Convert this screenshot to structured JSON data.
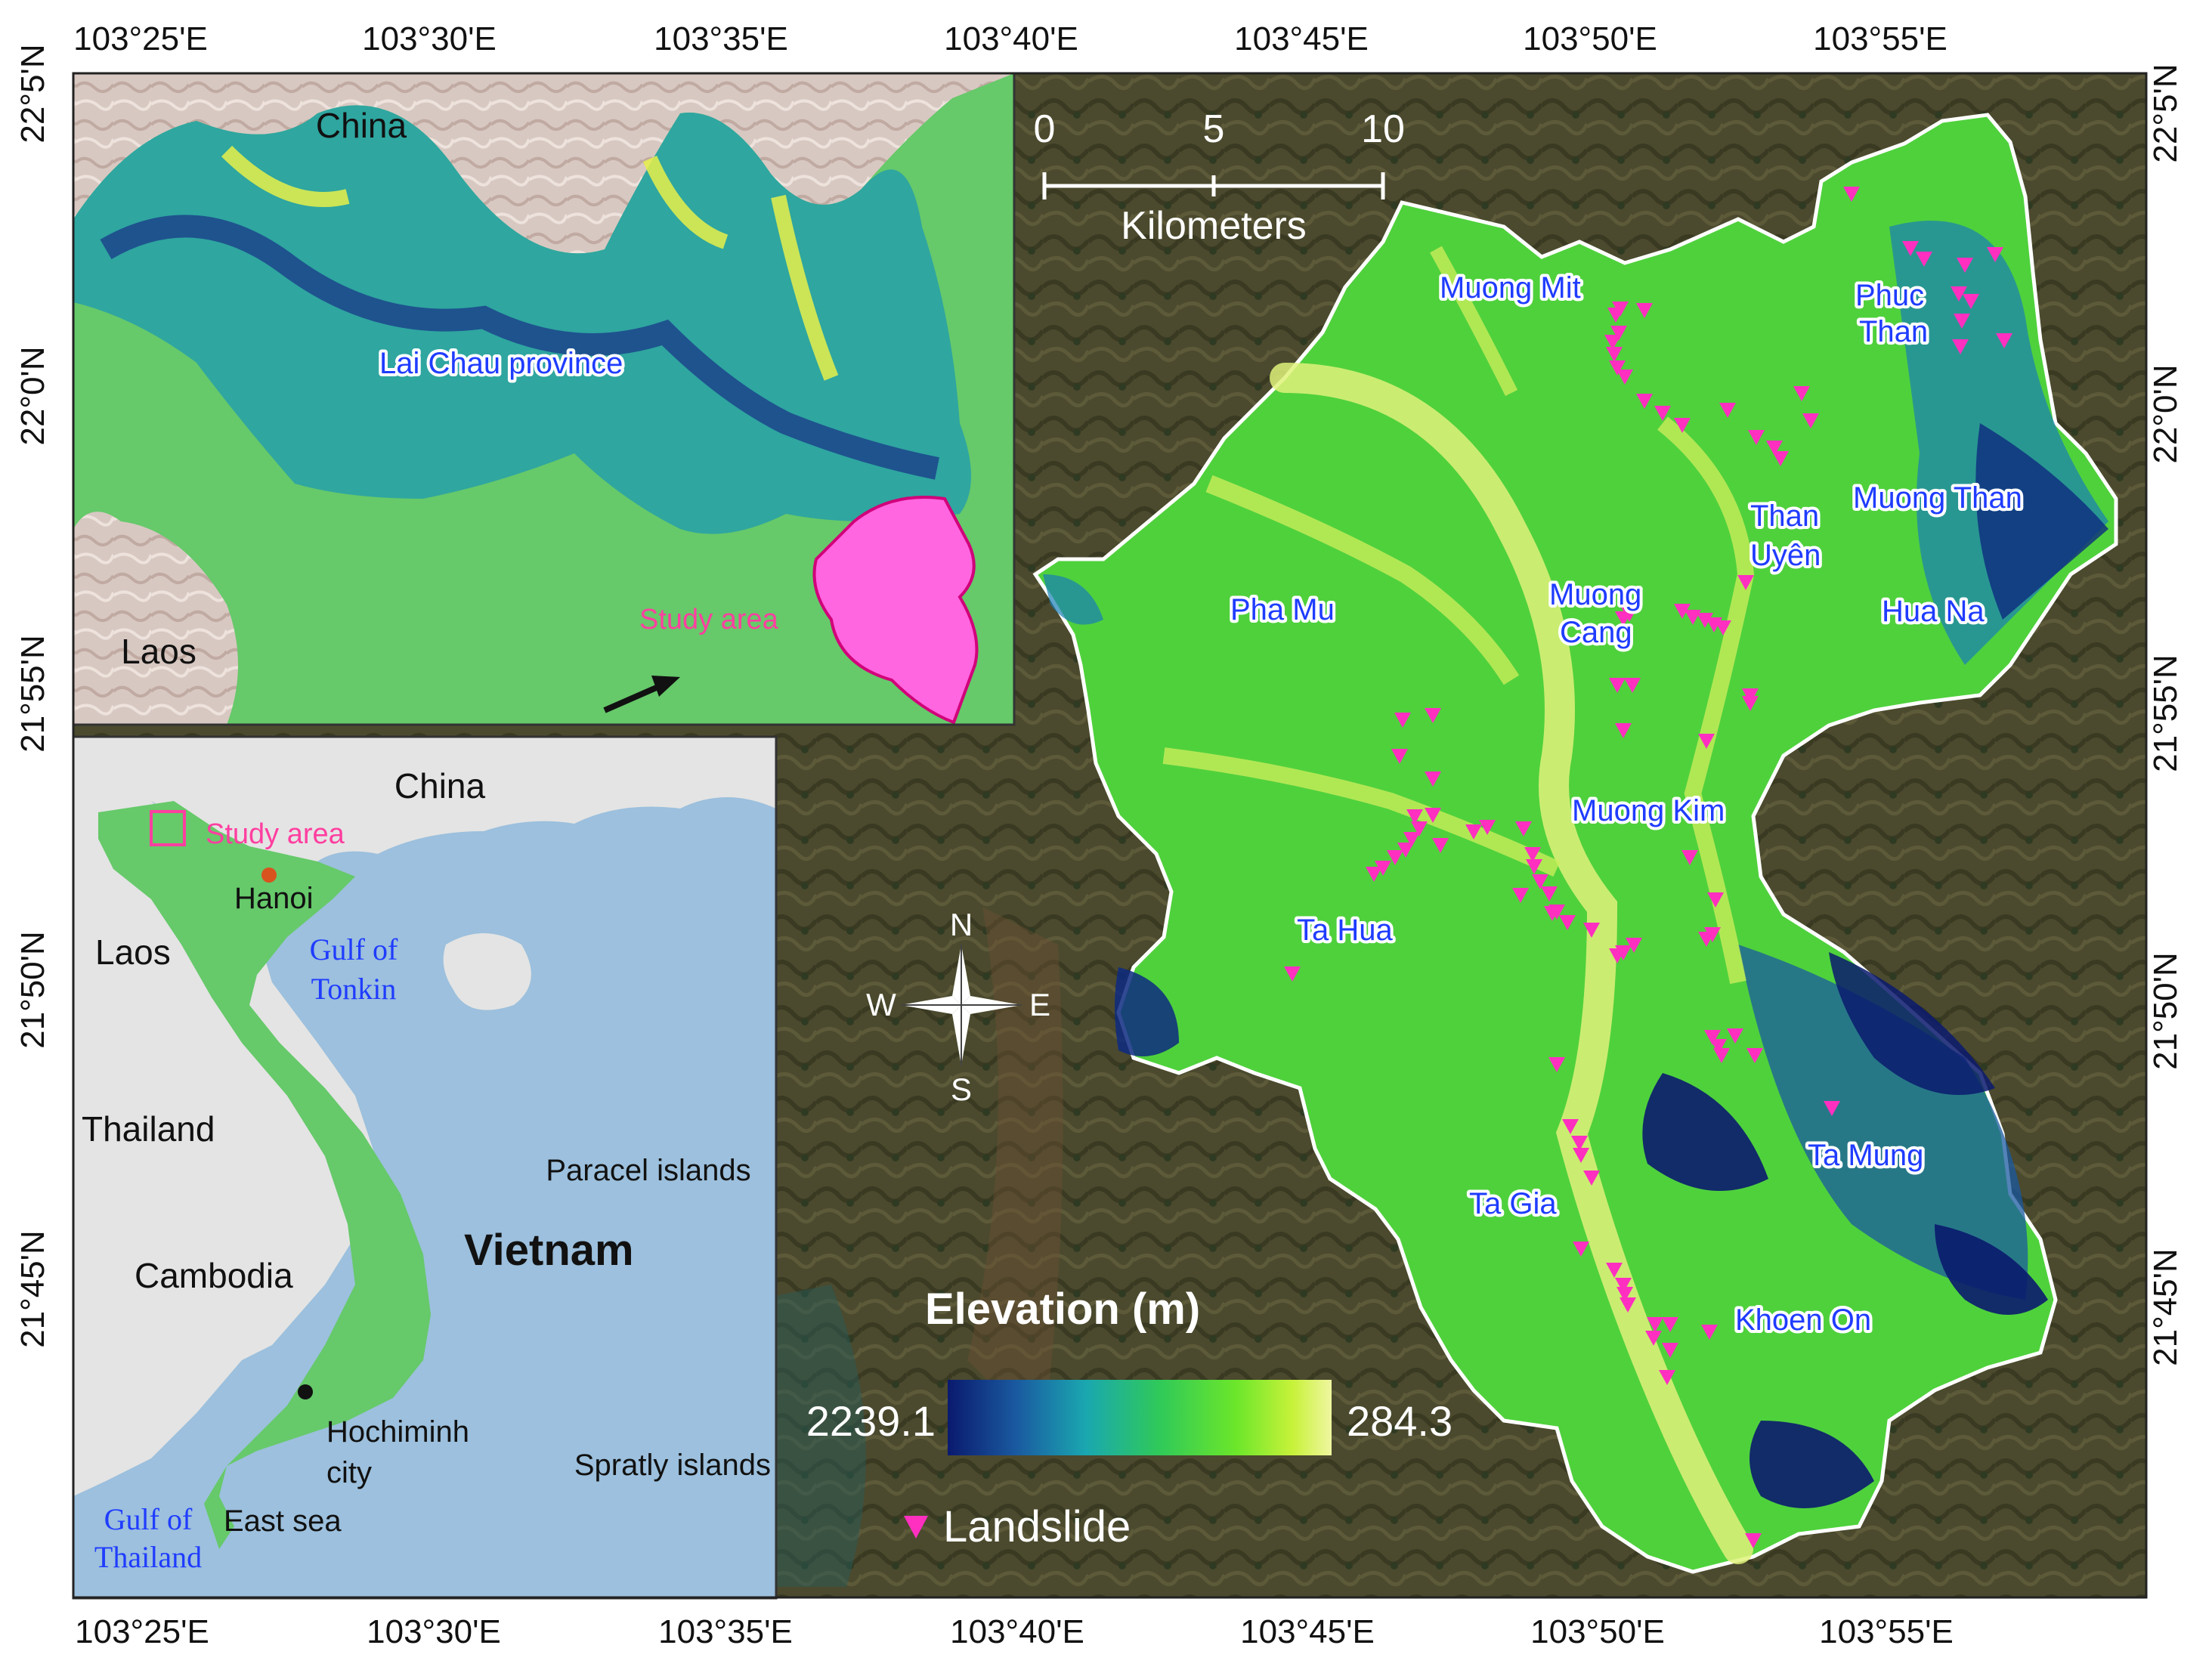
{
  "ticks": {
    "top": [
      "103°25'E",
      "103°30'E",
      "103°35'E",
      "103°40'E",
      "103°45'E",
      "103°50'E",
      "103°55'E"
    ],
    "bottom": [
      "103°25'E",
      "103°30'E",
      "103°35'E",
      "103°40'E",
      "103°45'E",
      "103°50'E",
      "103°55'E"
    ],
    "left": [
      "22°5'N",
      "22°0'N",
      "21°55'N",
      "21°50'N",
      "21°45'N"
    ],
    "right": [
      "22°5'N",
      "22°0'N",
      "21°55'N",
      "21°50'N",
      "21°45'N"
    ]
  },
  "inset_province": {
    "country_north": "China",
    "country_southwest": "Laos",
    "province": "Lai Chau province",
    "study": "Study area",
    "colors": {
      "border_land": "#d9c9c4",
      "province_base": "#66c96a",
      "study": "#ff66e0"
    }
  },
  "inset_country": {
    "china": "China",
    "laos": "Laos",
    "thailand": "Thailand",
    "cambodia": "Cambodia",
    "vietnam": "Vietnam",
    "hanoi": "Hanoi",
    "hcm_line1": "Hochiminh",
    "hcm_line2": "city",
    "study": "Study area",
    "tonkin_line1": "Gulf of",
    "tonkin_line2": "Tonkin",
    "paracel": "Paracel islands",
    "spratly": "Spratly islands",
    "east_sea": "East sea",
    "gulf_thai_line1": "Gulf of",
    "gulf_thai_line2": "Thailand",
    "colors": {
      "sea": "#9cc0dd",
      "land": "#e4e4e4",
      "vietnam": "#66c96a"
    }
  },
  "main_map": {
    "villages": [
      {
        "name": "Muong Mit"
      },
      {
        "name": "Phuc"
      },
      {
        "name": "Than"
      },
      {
        "name": "Muong Than"
      },
      {
        "name": "Than"
      },
      {
        "name": "Uyên"
      },
      {
        "name": "Pha Mu"
      },
      {
        "name": "Muong"
      },
      {
        "name": "Cang"
      },
      {
        "name": "Hua Na"
      },
      {
        "name": "Muong Kim"
      },
      {
        "name": "Ta Hua"
      },
      {
        "name": "Ta Mung"
      },
      {
        "name": "Ta Gia"
      },
      {
        "name": "Khoen On"
      }
    ],
    "scale": {
      "t0": "0",
      "t5": "5",
      "t10": "10",
      "unit": "Kilometers"
    },
    "compass": {
      "n": "N",
      "s": "S",
      "e": "E",
      "w": "W"
    }
  },
  "legend": {
    "title": "Elevation (m)",
    "min_label": "2239.1",
    "max_label": "284.3",
    "landslide": "Landslide",
    "gradient": [
      "#0a1a6e",
      "#1a5aa0",
      "#1aa7b0",
      "#2fc95a",
      "#6be62a",
      "#c8f23a",
      "#f0f6a0"
    ],
    "landslide_color": "#ff2fc0"
  }
}
